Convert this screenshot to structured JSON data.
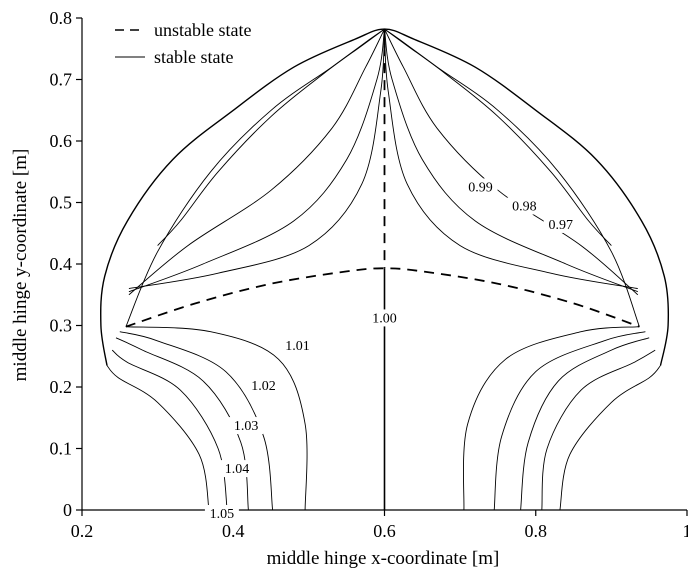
{
  "chart_data": {
    "type": "line",
    "xlabel": "middle hinge x-coordinate [m]",
    "ylabel": "middle hinge y-coordinate [m]",
    "xlim": [
      0.2,
      1.0
    ],
    "ylim": [
      0,
      0.8
    ],
    "x_ticks": [
      "0.2",
      "0.4",
      "0.6",
      "0.8",
      "1"
    ],
    "y_ticks": [
      "0",
      "0.1",
      "0.2",
      "0.3",
      "0.4",
      "0.5",
      "0.6",
      "0.7",
      "0.8"
    ],
    "legend": {
      "position": "top-left",
      "entries": [
        {
          "label": "unstable state",
          "style": "dashed"
        },
        {
          "label": "stable state",
          "style": "solid"
        }
      ]
    },
    "contour_labels": [
      {
        "text": "1.00",
        "x": 0.6,
        "y": 0.305
      },
      {
        "text": "1.01",
        "x": 0.485,
        "y": 0.26
      },
      {
        "text": "1.02",
        "x": 0.44,
        "y": 0.195
      },
      {
        "text": "1.03",
        "x": 0.417,
        "y": 0.13
      },
      {
        "text": "1.04",
        "x": 0.405,
        "y": 0.06
      },
      {
        "text": "1.05",
        "x": 0.385,
        "y": -0.013
      },
      {
        "text": "0.99",
        "x": 0.727,
        "y": 0.518
      },
      {
        "text": "0.98",
        "x": 0.785,
        "y": 0.487
      },
      {
        "text": "0.97",
        "x": 0.833,
        "y": 0.457
      }
    ],
    "unstable_curves": [
      {
        "name": "vertical-segment",
        "x": [
          0.6,
          0.6
        ],
        "y": [
          0.782,
          0.393
        ]
      },
      {
        "name": "arc",
        "x": [
          0.258,
          0.35,
          0.45,
          0.55,
          0.6,
          0.65,
          0.75,
          0.85,
          0.937
        ],
        "y": [
          0.298,
          0.336,
          0.368,
          0.388,
          0.393,
          0.388,
          0.368,
          0.336,
          0.298
        ]
      }
    ],
    "stable_curves": [
      {
        "name": "center-line",
        "x": [
          0.6,
          0.6
        ],
        "y": [
          0.0,
          0.393
        ]
      },
      {
        "name": "envelope",
        "x": [
          0.233,
          0.225,
          0.23,
          0.26,
          0.32,
          0.4,
          0.48,
          0.56,
          0.6,
          0.64,
          0.72,
          0.8,
          0.88,
          0.94,
          0.97,
          0.975,
          0.965
        ],
        "y": [
          0.235,
          0.3,
          0.38,
          0.47,
          0.57,
          0.65,
          0.72,
          0.765,
          0.782,
          0.765,
          0.72,
          0.65,
          0.57,
          0.47,
          0.38,
          0.3,
          0.235
        ]
      },
      {
        "name": "left-1.05",
        "x": [
          0.368,
          0.355,
          0.3,
          0.248,
          0.233
        ],
        "y": [
          0.0,
          0.09,
          0.175,
          0.215,
          0.235
        ]
      },
      {
        "name": "left-1.04",
        "x": [
          0.392,
          0.38,
          0.33,
          0.26,
          0.24
        ],
        "y": [
          0.0,
          0.1,
          0.195,
          0.24,
          0.26
        ]
      },
      {
        "name": "left-1.03",
        "x": [
          0.42,
          0.41,
          0.36,
          0.28,
          0.245
        ],
        "y": [
          0.0,
          0.11,
          0.21,
          0.26,
          0.28
        ]
      },
      {
        "name": "left-1.02",
        "x": [
          0.452,
          0.44,
          0.39,
          0.3,
          0.25
        ],
        "y": [
          0.0,
          0.12,
          0.225,
          0.275,
          0.29
        ]
      },
      {
        "name": "left-1.01",
        "x": [
          0.495,
          0.495,
          0.46,
          0.37,
          0.258
        ],
        "y": [
          0.0,
          0.14,
          0.245,
          0.29,
          0.298
        ]
      },
      {
        "name": "right-1",
        "x": [
          0.705,
          0.71,
          0.76,
          0.86,
          0.937
        ],
        "y": [
          0.0,
          0.14,
          0.245,
          0.29,
          0.298
        ]
      },
      {
        "name": "right-2",
        "x": [
          0.745,
          0.755,
          0.8,
          0.89,
          0.945
        ],
        "y": [
          0.0,
          0.12,
          0.225,
          0.275,
          0.29
        ]
      },
      {
        "name": "right-3",
        "x": [
          0.78,
          0.79,
          0.83,
          0.9,
          0.95
        ],
        "y": [
          0.0,
          0.11,
          0.21,
          0.26,
          0.28
        ]
      },
      {
        "name": "right-4",
        "x": [
          0.808,
          0.815,
          0.86,
          0.93,
          0.958
        ],
        "y": [
          0.0,
          0.1,
          0.195,
          0.24,
          0.26
        ]
      },
      {
        "name": "right-5",
        "x": [
          0.832,
          0.845,
          0.9,
          0.95,
          0.965
        ],
        "y": [
          0.0,
          0.09,
          0.175,
          0.215,
          0.235
        ]
      },
      {
        "name": "left-lobe-outer",
        "x": [
          0.258,
          0.3,
          0.37,
          0.45,
          0.53,
          0.58,
          0.6
        ],
        "y": [
          0.298,
          0.42,
          0.55,
          0.65,
          0.72,
          0.765,
          0.782
        ]
      },
      {
        "name": "left-lobe-a",
        "x": [
          0.262,
          0.34,
          0.45,
          0.53,
          0.575,
          0.6
        ],
        "y": [
          0.35,
          0.43,
          0.52,
          0.62,
          0.72,
          0.782
        ]
      },
      {
        "name": "left-lobe-b",
        "x": [
          0.262,
          0.36,
          0.48,
          0.55,
          0.59,
          0.6
        ],
        "y": [
          0.355,
          0.4,
          0.47,
          0.57,
          0.7,
          0.782
        ]
      },
      {
        "name": "left-lobe-c",
        "x": [
          0.262,
          0.38,
          0.5,
          0.57,
          0.595,
          0.6
        ],
        "y": [
          0.36,
          0.385,
          0.43,
          0.53,
          0.68,
          0.782
        ]
      },
      {
        "name": "left-lobe-d",
        "x": [
          0.3,
          0.33,
          0.38,
          0.45,
          0.52,
          0.57,
          0.6
        ],
        "y": [
          0.43,
          0.47,
          0.55,
          0.64,
          0.71,
          0.755,
          0.782
        ]
      },
      {
        "name": "right-lobe-outer",
        "x": [
          0.937,
          0.9,
          0.83,
          0.75,
          0.67,
          0.62,
          0.6
        ],
        "y": [
          0.298,
          0.42,
          0.55,
          0.65,
          0.72,
          0.765,
          0.782
        ]
      },
      {
        "name": "right-lobe-a",
        "x": [
          0.935,
          0.86,
          0.75,
          0.67,
          0.625,
          0.6
        ],
        "y": [
          0.35,
          0.43,
          0.52,
          0.62,
          0.72,
          0.782
        ]
      },
      {
        "name": "right-lobe-b",
        "x": [
          0.935,
          0.84,
          0.72,
          0.65,
          0.61,
          0.6
        ],
        "y": [
          0.355,
          0.4,
          0.47,
          0.57,
          0.7,
          0.782
        ]
      },
      {
        "name": "right-lobe-c",
        "x": [
          0.935,
          0.82,
          0.7,
          0.63,
          0.605,
          0.6
        ],
        "y": [
          0.36,
          0.385,
          0.43,
          0.53,
          0.68,
          0.782
        ]
      },
      {
        "name": "right-lobe-d",
        "x": [
          0.9,
          0.87,
          0.82,
          0.75,
          0.68,
          0.63,
          0.6
        ],
        "y": [
          0.43,
          0.47,
          0.55,
          0.64,
          0.71,
          0.755,
          0.782
        ]
      }
    ]
  }
}
